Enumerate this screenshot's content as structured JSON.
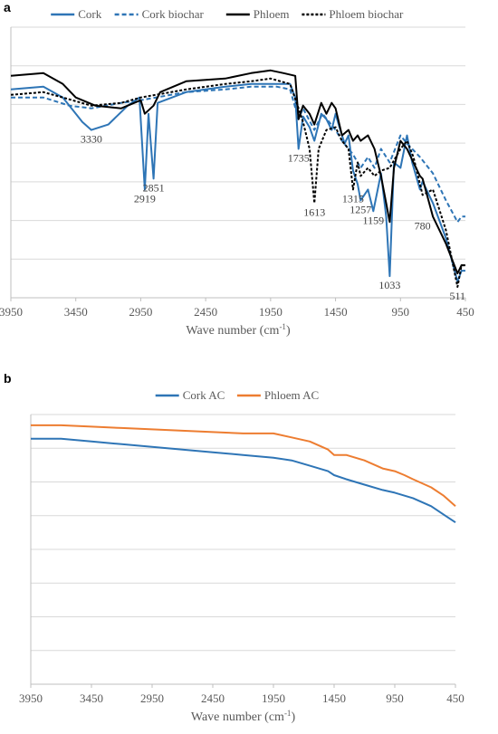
{
  "chart_data": [
    {
      "panel_label": "a",
      "type": "line",
      "xlabel": "Wave number (cm-1)",
      "xlim": [
        3950,
        450
      ],
      "x_reversed": true,
      "xticks": [
        3950,
        3450,
        2950,
        2450,
        1950,
        1450,
        950,
        450
      ],
      "grid": "horizontal",
      "legend": "top",
      "series": [
        {
          "name": "Cork",
          "color": "#2E75B6",
          "dash": "solid",
          "points": [
            [
              3950,
              0.77
            ],
            [
              3700,
              0.78
            ],
            [
              3550,
              0.74
            ],
            [
              3400,
              0.65
            ],
            [
              3330,
              0.62
            ],
            [
              3200,
              0.64
            ],
            [
              3050,
              0.71
            ],
            [
              2960,
              0.74
            ],
            [
              2919,
              0.4
            ],
            [
              2890,
              0.68
            ],
            [
              2851,
              0.44
            ],
            [
              2820,
              0.72
            ],
            [
              2600,
              0.76
            ],
            [
              2300,
              0.78
            ],
            [
              2100,
              0.79
            ],
            [
              1900,
              0.79
            ],
            [
              1800,
              0.79
            ],
            [
              1760,
              0.74
            ],
            [
              1735,
              0.55
            ],
            [
              1700,
              0.67
            ],
            [
              1650,
              0.63
            ],
            [
              1613,
              0.58
            ],
            [
              1560,
              0.68
            ],
            [
              1520,
              0.66
            ],
            [
              1480,
              0.62
            ],
            [
              1450,
              0.68
            ],
            [
              1420,
              0.63
            ],
            [
              1380,
              0.57
            ],
            [
              1350,
              0.6
            ],
            [
              1315,
              0.47
            ],
            [
              1280,
              0.42
            ],
            [
              1257,
              0.36
            ],
            [
              1200,
              0.4
            ],
            [
              1159,
              0.32
            ],
            [
              1100,
              0.46
            ],
            [
              1060,
              0.3
            ],
            [
              1033,
              0.08
            ],
            [
              1000,
              0.5
            ],
            [
              950,
              0.48
            ],
            [
              900,
              0.6
            ],
            [
              860,
              0.5
            ],
            [
              800,
              0.4
            ],
            [
              780,
              0.43
            ],
            [
              700,
              0.35
            ],
            [
              600,
              0.22
            ],
            [
              511,
              0.06
            ],
            [
              480,
              0.1
            ],
            [
              450,
              0.1
            ]
          ]
        },
        {
          "name": "Cork biochar",
          "color": "#2E75B6",
          "dash": "dashed",
          "points": [
            [
              3950,
              0.74
            ],
            [
              3700,
              0.74
            ],
            [
              3500,
              0.71
            ],
            [
              3330,
              0.7
            ],
            [
              3100,
              0.72
            ],
            [
              2950,
              0.73
            ],
            [
              2600,
              0.76
            ],
            [
              2300,
              0.77
            ],
            [
              2100,
              0.78
            ],
            [
              1900,
              0.78
            ],
            [
              1800,
              0.77
            ],
            [
              1735,
              0.66
            ],
            [
              1700,
              0.7
            ],
            [
              1613,
              0.62
            ],
            [
              1550,
              0.68
            ],
            [
              1450,
              0.62
            ],
            [
              1400,
              0.58
            ],
            [
              1350,
              0.55
            ],
            [
              1315,
              0.53
            ],
            [
              1257,
              0.48
            ],
            [
              1200,
              0.52
            ],
            [
              1150,
              0.48
            ],
            [
              1100,
              0.55
            ],
            [
              1033,
              0.5
            ],
            [
              950,
              0.6
            ],
            [
              900,
              0.57
            ],
            [
              800,
              0.52
            ],
            [
              700,
              0.46
            ],
            [
              600,
              0.36
            ],
            [
              511,
              0.28
            ],
            [
              480,
              0.3
            ],
            [
              450,
              0.3
            ]
          ]
        },
        {
          "name": "Phloem",
          "color": "#000000",
          "dash": "solid",
          "points": [
            [
              3950,
              0.82
            ],
            [
              3700,
              0.83
            ],
            [
              3550,
              0.79
            ],
            [
              3450,
              0.74
            ],
            [
              3300,
              0.71
            ],
            [
              3100,
              0.7
            ],
            [
              2950,
              0.73
            ],
            [
              2919,
              0.68
            ],
            [
              2851,
              0.71
            ],
            [
              2800,
              0.76
            ],
            [
              2600,
              0.8
            ],
            [
              2300,
              0.81
            ],
            [
              2100,
              0.83
            ],
            [
              1950,
              0.84
            ],
            [
              1850,
              0.83
            ],
            [
              1760,
              0.82
            ],
            [
              1735,
              0.66
            ],
            [
              1700,
              0.71
            ],
            [
              1650,
              0.68
            ],
            [
              1613,
              0.64
            ],
            [
              1560,
              0.72
            ],
            [
              1520,
              0.68
            ],
            [
              1480,
              0.72
            ],
            [
              1450,
              0.7
            ],
            [
              1400,
              0.6
            ],
            [
              1350,
              0.62
            ],
            [
              1315,
              0.58
            ],
            [
              1280,
              0.6
            ],
            [
              1257,
              0.58
            ],
            [
              1200,
              0.6
            ],
            [
              1150,
              0.55
            ],
            [
              1100,
              0.45
            ],
            [
              1060,
              0.35
            ],
            [
              1033,
              0.28
            ],
            [
              1000,
              0.48
            ],
            [
              950,
              0.58
            ],
            [
              900,
              0.55
            ],
            [
              850,
              0.5
            ],
            [
              800,
              0.45
            ],
            [
              780,
              0.44
            ],
            [
              700,
              0.3
            ],
            [
              600,
              0.2
            ],
            [
              511,
              0.09
            ],
            [
              480,
              0.12
            ],
            [
              450,
              0.12
            ]
          ]
        },
        {
          "name": "Phloem biochar",
          "color": "#000000",
          "dash": "dashed",
          "points": [
            [
              3950,
              0.75
            ],
            [
              3700,
              0.76
            ],
            [
              3550,
              0.74
            ],
            [
              3330,
              0.71
            ],
            [
              3100,
              0.72
            ],
            [
              2950,
              0.74
            ],
            [
              2600,
              0.77
            ],
            [
              2300,
              0.79
            ],
            [
              2100,
              0.8
            ],
            [
              1950,
              0.81
            ],
            [
              1800,
              0.79
            ],
            [
              1735,
              0.7
            ],
            [
              1700,
              0.65
            ],
            [
              1650,
              0.55
            ],
            [
              1613,
              0.35
            ],
            [
              1580,
              0.55
            ],
            [
              1520,
              0.62
            ],
            [
              1450,
              0.63
            ],
            [
              1400,
              0.58
            ],
            [
              1350,
              0.55
            ],
            [
              1315,
              0.4
            ],
            [
              1280,
              0.5
            ],
            [
              1257,
              0.45
            ],
            [
              1200,
              0.48
            ],
            [
              1150,
              0.45
            ],
            [
              1100,
              0.47
            ],
            [
              1033,
              0.48
            ],
            [
              950,
              0.55
            ],
            [
              900,
              0.58
            ],
            [
              850,
              0.52
            ],
            [
              780,
              0.38
            ],
            [
              700,
              0.4
            ],
            [
              600,
              0.25
            ],
            [
              511,
              0.04
            ],
            [
              480,
              0.12
            ],
            [
              450,
              0.12
            ]
          ]
        }
      ],
      "annotations": [
        {
          "text": "3330",
          "x": 3330
        },
        {
          "text": "2919",
          "x": 2919
        },
        {
          "text": "2851",
          "x": 2851
        },
        {
          "text": "1735",
          "x": 1735
        },
        {
          "text": "1613",
          "x": 1613
        },
        {
          "text": "1315",
          "x": 1315
        },
        {
          "text": "1257",
          "x": 1257
        },
        {
          "text": "1159",
          "x": 1159
        },
        {
          "text": "1033",
          "x": 1033
        },
        {
          "text": "780",
          "x": 780
        },
        {
          "text": "511",
          "x": 511
        }
      ]
    },
    {
      "panel_label": "b",
      "type": "line",
      "xlabel": "Wave number (cm-1)",
      "xlim": [
        3950,
        450
      ],
      "x_reversed": true,
      "xticks": [
        3950,
        3450,
        2950,
        2450,
        1950,
        1450,
        950,
        450
      ],
      "grid": "horizontal",
      "legend": "top",
      "series": [
        {
          "name": "Cork AC",
          "color": "#2E75B6",
          "dash": "solid",
          "points": [
            [
              3950,
              0.91
            ],
            [
              3700,
              0.91
            ],
            [
              3450,
              0.9
            ],
            [
              3200,
              0.89
            ],
            [
              2950,
              0.88
            ],
            [
              2700,
              0.87
            ],
            [
              2450,
              0.86
            ],
            [
              2200,
              0.85
            ],
            [
              1950,
              0.84
            ],
            [
              1800,
              0.83
            ],
            [
              1650,
              0.81
            ],
            [
              1500,
              0.79
            ],
            [
              1450,
              0.775
            ],
            [
              1350,
              0.76
            ],
            [
              1200,
              0.74
            ],
            [
              1050,
              0.72
            ],
            [
              950,
              0.71
            ],
            [
              800,
              0.69
            ],
            [
              650,
              0.66
            ],
            [
              550,
              0.63
            ],
            [
              450,
              0.6
            ]
          ]
        },
        {
          "name": "Phloem AC",
          "color": "#ED7D31",
          "dash": "solid",
          "points": [
            [
              3950,
              0.96
            ],
            [
              3700,
              0.96
            ],
            [
              3450,
              0.955
            ],
            [
              3200,
              0.95
            ],
            [
              2950,
              0.945
            ],
            [
              2700,
              0.94
            ],
            [
              2450,
              0.935
            ],
            [
              2200,
              0.93
            ],
            [
              1950,
              0.93
            ],
            [
              1800,
              0.915
            ],
            [
              1650,
              0.9
            ],
            [
              1500,
              0.87
            ],
            [
              1450,
              0.85
            ],
            [
              1350,
              0.85
            ],
            [
              1200,
              0.83
            ],
            [
              1050,
              0.8
            ],
            [
              950,
              0.79
            ],
            [
              870,
              0.775
            ],
            [
              800,
              0.76
            ],
            [
              650,
              0.73
            ],
            [
              550,
              0.7
            ],
            [
              450,
              0.66
            ]
          ]
        }
      ]
    }
  ]
}
